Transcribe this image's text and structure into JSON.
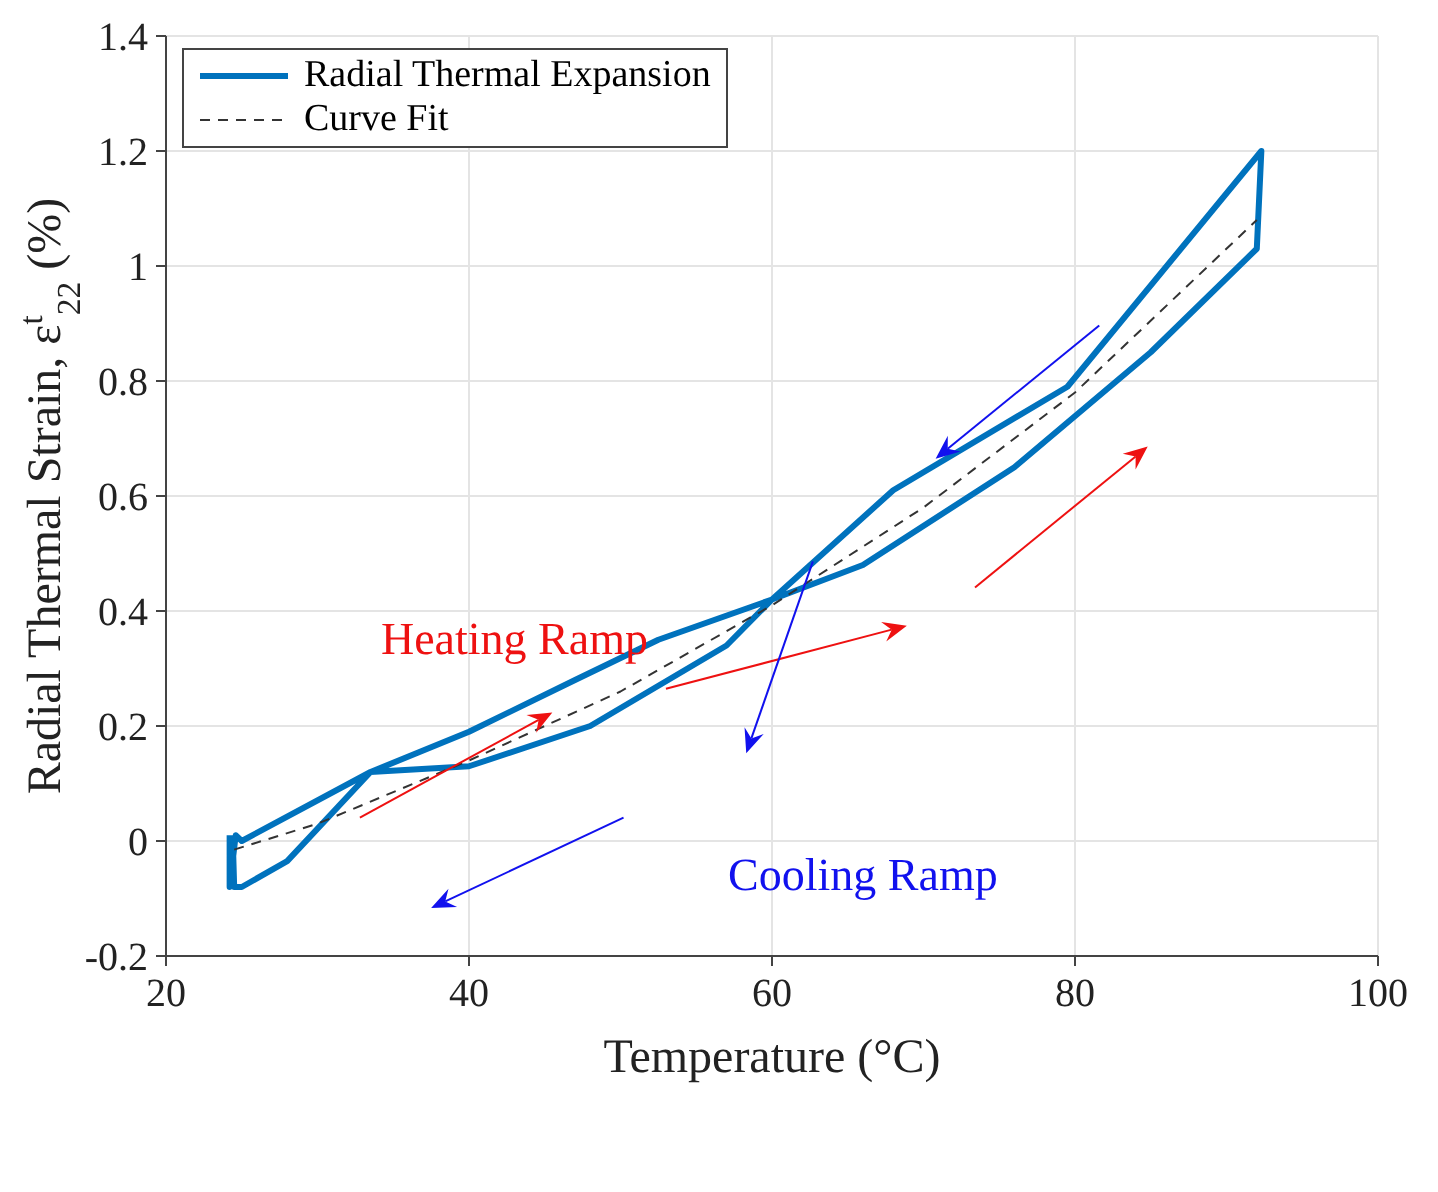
{
  "chart_data": {
    "type": "line",
    "xlabel": "Temperature (°C)",
    "ylabel": "Radial Thermal Strain, ε$^{t}$$_{22}$ (%)",
    "xlim": [
      20,
      100
    ],
    "xticks": [
      20,
      40,
      60,
      80,
      100
    ],
    "ylim": [
      -0.2,
      1.4
    ],
    "yticks": [
      -0.2,
      0,
      0.2,
      0.4,
      0.6,
      0.8,
      1,
      1.2,
      1.4
    ],
    "grid": true,
    "legend": "top left",
    "marker": "none",
    "series": [
      {
        "name": "Radial Thermal Expansion",
        "color": "#0072bd",
        "line_style": "solid",
        "x": [
          24.2,
          24.2,
          24.6,
          25,
          33.5,
          40,
          47,
          52.5,
          60,
          66,
          76,
          85,
          92,
          92.3,
          79.5,
          68,
          60,
          57,
          48,
          40,
          33.5,
          28,
          25,
          24.5,
          24.4
        ],
        "values": [
          0.01,
          -0.08,
          0.01,
          0,
          0.12,
          0.19,
          0.28,
          0.35,
          0.42,
          0.48,
          0.65,
          0.85,
          1.03,
          1.2,
          0.79,
          0.61,
          0.42,
          0.34,
          0.2,
          0.13,
          0.12,
          -0.035,
          -0.08,
          -0.08,
          0.01
        ]
      },
      {
        "name": "Curve Fit",
        "color": "#333333",
        "line_style": "dashed",
        "x": [
          24.5,
          30,
          40,
          50,
          60,
          70,
          80,
          92
        ],
        "values": [
          -0.015,
          0.03,
          0.14,
          0.26,
          0.41,
          0.58,
          0.78,
          1.08
        ]
      }
    ],
    "annotations": [
      "Heating Ramp",
      "Cooling Ramp"
    ]
  }
}
